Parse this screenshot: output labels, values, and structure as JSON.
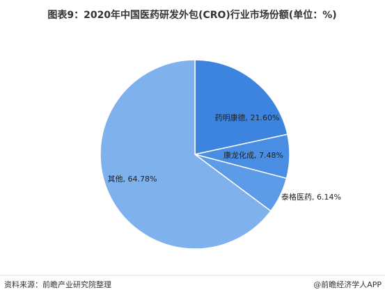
{
  "chart_data": {
    "type": "pie",
    "title": "图表9：2020年中国医药研发外包(CRO)行业市场份额(单位：%)",
    "categories": [
      "药明康德",
      "康龙化成",
      "泰格医药",
      "其他"
    ],
    "values": [
      21.6,
      7.48,
      6.14,
      64.78
    ],
    "value_labels": [
      "21.60%",
      "7.48%",
      "6.14%",
      "64.78%"
    ],
    "colors": [
      "#3d84df",
      "#4a8ee3",
      "#5c9be7",
      "#7fb1ed"
    ],
    "source": "资料来源：前瞻产业研究院整理",
    "credit": "@前瞻经济学人APP"
  }
}
